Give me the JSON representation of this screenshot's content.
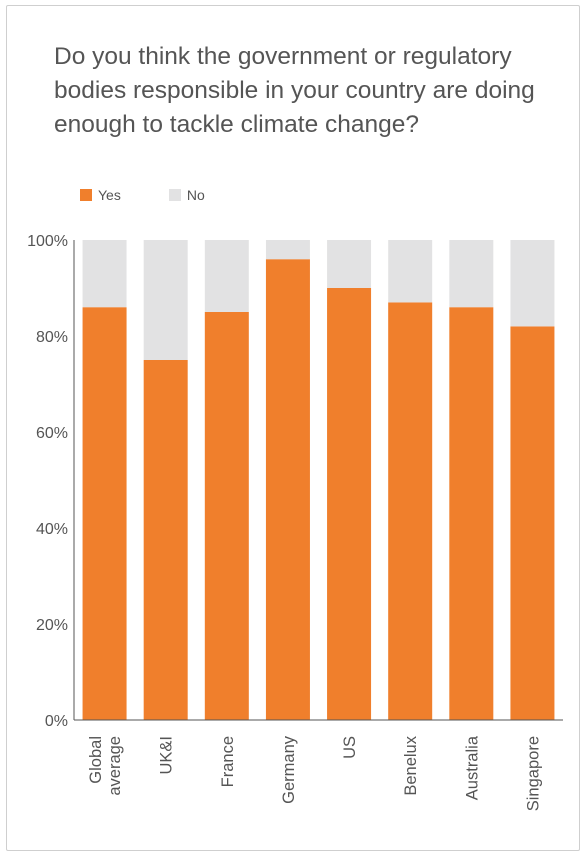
{
  "title": "Do you think the government or regulatory bodies responsible in your country are doing enough to tackle climate change?",
  "legend": {
    "yes": "Yes",
    "no": "No"
  },
  "colors": {
    "yes": "#f07f2c",
    "no": "#e2e2e3",
    "axis": "#555555"
  },
  "chart_data": {
    "type": "bar",
    "stacked": true,
    "title": "Do you think the government or regulatory bodies responsible in your country are doing enough to tackle climate change?",
    "categories": [
      "Global average",
      "UK&I",
      "France",
      "Germany",
      "US",
      "Benelux",
      "Australia",
      "Singapore"
    ],
    "category_lines": [
      [
        "Global",
        "average"
      ],
      [
        "UK&I"
      ],
      [
        "France"
      ],
      [
        "Germany"
      ],
      [
        "US"
      ],
      [
        "Benelux"
      ],
      [
        "Australia"
      ],
      [
        "Singapore"
      ]
    ],
    "series": [
      {
        "name": "Yes",
        "values": [
          86,
          75,
          85,
          96,
          90,
          87,
          86,
          82
        ]
      },
      {
        "name": "No",
        "values": [
          14,
          25,
          15,
          4,
          10,
          13,
          14,
          18
        ]
      }
    ],
    "ylim": [
      0,
      100
    ],
    "yticks": [
      "0%",
      "20%",
      "40%",
      "60%",
      "80%",
      "100%"
    ],
    "xlabel": "",
    "ylabel": "",
    "grid": false,
    "legend_position": "top-left",
    "x_tick_rotation": "vertical"
  }
}
